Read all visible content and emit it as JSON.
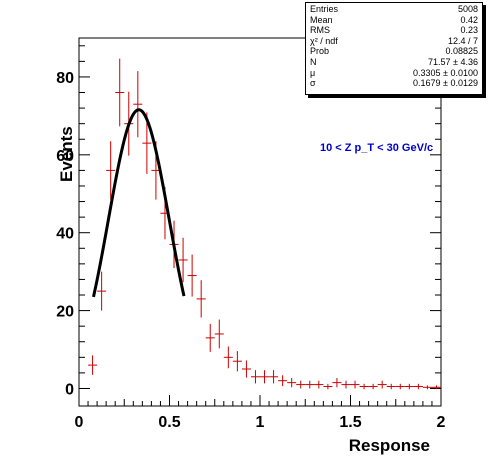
{
  "chart_data": {
    "type": "scatter",
    "title": "",
    "xlabel": "Response",
    "ylabel": "Events",
    "xlim": [
      0,
      2
    ],
    "ylim": [
      -4.5,
      90
    ],
    "x_ticks": [
      "0",
      "0.5",
      "1",
      "1.5",
      "2"
    ],
    "y_ticks": [
      "0",
      "20",
      "40",
      "60",
      "80"
    ],
    "x_tick_values": [
      0,
      0.5,
      1,
      1.5,
      2
    ],
    "y_tick_values": [
      0,
      20,
      40,
      60,
      80
    ],
    "annotation": "10 < Z p_T < 30 GeV/c",
    "histogram_color": "#cc0000",
    "fit_color": "#000000",
    "annotation_color": "#0000cc",
    "bin_width": 0.05,
    "points": [
      {
        "x": 0.075,
        "y": 6,
        "err": 2.5
      },
      {
        "x": 0.125,
        "y": 25,
        "err": 5
      },
      {
        "x": 0.175,
        "y": 56,
        "err": 7.5
      },
      {
        "x": 0.225,
        "y": 76,
        "err": 8.7
      },
      {
        "x": 0.275,
        "y": 68,
        "err": 8.2
      },
      {
        "x": 0.325,
        "y": 73,
        "err": 8.5
      },
      {
        "x": 0.375,
        "y": 63,
        "err": 7.9
      },
      {
        "x": 0.425,
        "y": 56,
        "err": 7.5
      },
      {
        "x": 0.475,
        "y": 45,
        "err": 6.7
      },
      {
        "x": 0.525,
        "y": 37,
        "err": 6.1
      },
      {
        "x": 0.575,
        "y": 33,
        "err": 5.7
      },
      {
        "x": 0.625,
        "y": 29,
        "err": 5.4
      },
      {
        "x": 0.675,
        "y": 23,
        "err": 4.8
      },
      {
        "x": 0.725,
        "y": 13,
        "err": 3.6
      },
      {
        "x": 0.775,
        "y": 14,
        "err": 3.7
      },
      {
        "x": 0.825,
        "y": 8,
        "err": 2.8
      },
      {
        "x": 0.875,
        "y": 7,
        "err": 2.6
      },
      {
        "x": 0.925,
        "y": 5,
        "err": 2.2
      },
      {
        "x": 0.975,
        "y": 3,
        "err": 1.7
      },
      {
        "x": 1.025,
        "y": 3,
        "err": 1.7
      },
      {
        "x": 1.075,
        "y": 3,
        "err": 1.7
      },
      {
        "x": 1.125,
        "y": 2,
        "err": 1.4
      },
      {
        "x": 1.175,
        "y": 1.5,
        "err": 1.2
      },
      {
        "x": 1.225,
        "y": 1,
        "err": 1
      },
      {
        "x": 1.275,
        "y": 1,
        "err": 1
      },
      {
        "x": 1.325,
        "y": 1,
        "err": 1
      },
      {
        "x": 1.375,
        "y": 0.5,
        "err": 0.7
      },
      {
        "x": 1.425,
        "y": 1.5,
        "err": 1.2
      },
      {
        "x": 1.475,
        "y": 1,
        "err": 1
      },
      {
        "x": 1.525,
        "y": 1,
        "err": 1
      },
      {
        "x": 1.575,
        "y": 0.5,
        "err": 0.7
      },
      {
        "x": 1.625,
        "y": 0.5,
        "err": 0.7
      },
      {
        "x": 1.675,
        "y": 1,
        "err": 1
      },
      {
        "x": 1.725,
        "y": 0.5,
        "err": 0.7
      },
      {
        "x": 1.775,
        "y": 0.5,
        "err": 0.7
      },
      {
        "x": 1.825,
        "y": 0.5,
        "err": 0.7
      },
      {
        "x": 1.875,
        "y": 0.5,
        "err": 0.7
      },
      {
        "x": 1.925,
        "y": 0.3,
        "err": 0.5
      },
      {
        "x": 1.975,
        "y": 0.3,
        "err": 0.5
      }
    ],
    "fit": {
      "function": "gaus",
      "N": 71.57,
      "mu": 0.3305,
      "sigma": 0.1679,
      "range": [
        0.08,
        0.58
      ]
    }
  },
  "stats": {
    "rows": [
      {
        "label": "Entries",
        "value": "5008"
      },
      {
        "label": "Mean",
        "value": "0.42"
      },
      {
        "label": "RMS",
        "value": "0.23"
      },
      {
        "label": "χ² / ndf",
        "value": "12.4 / 7"
      },
      {
        "label": "Prob",
        "value": "0.08825"
      },
      {
        "label": "N",
        "value": "71.57 ± 4.36"
      },
      {
        "label": "μ",
        "value": "0.3305 ± 0.0100"
      },
      {
        "label": "σ",
        "value": "0.1679 ± 0.0129"
      }
    ]
  }
}
